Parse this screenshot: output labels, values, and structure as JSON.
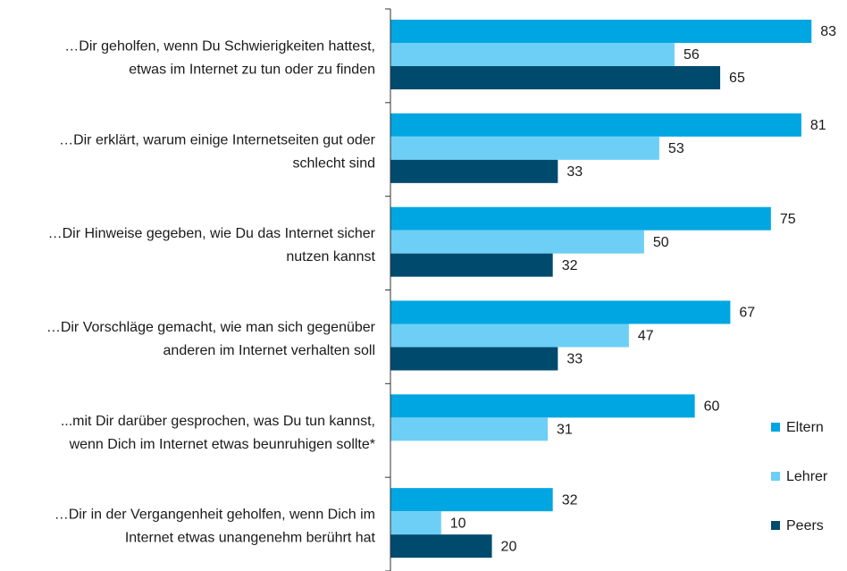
{
  "chart_data": {
    "type": "bar",
    "orientation": "horizontal",
    "categories": [
      "…Dir geholfen, wenn Du Schwierigkeiten hattest,\netwas im Internet zu tun oder zu finden",
      "…Dir erklärt, warum einige Internetseiten gut oder\nschlecht sind",
      "…Dir Hinweise gegeben, wie Du das Internet sicher\nnutzen kannst",
      "…Dir Vorschläge gemacht, wie man sich gegenüber\nanderen im Internet verhalten soll",
      "...mit Dir darüber gesprochen, was Du tun kannst,\nwenn Dich im Internet etwas beunruhigen sollte*",
      "…Dir in der Vergangenheit geholfen, wenn Dich im\nInternet etwas unangenehm berührt hat"
    ],
    "series": [
      {
        "name": "Eltern",
        "color": "#00a6e2",
        "values": [
          83,
          81,
          75,
          67,
          60,
          32
        ]
      },
      {
        "name": "Lehrer",
        "color": "#6dcff6",
        "values": [
          56,
          53,
          50,
          47,
          31,
          10
        ]
      },
      {
        "name": "Peers",
        "color": "#004a6e",
        "values": [
          65,
          33,
          32,
          33,
          null,
          20
        ]
      }
    ],
    "xlim": [
      0,
      90
    ],
    "legend": "right"
  }
}
